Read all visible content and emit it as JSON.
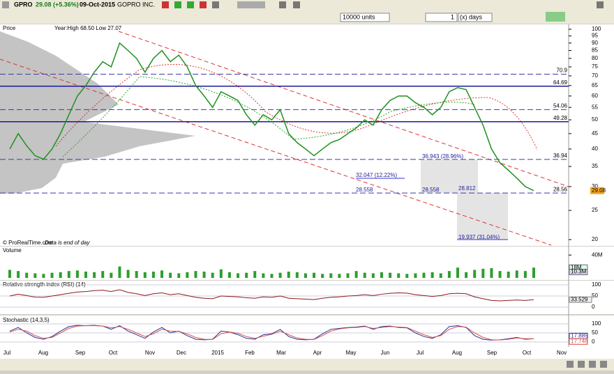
{
  "toolbar": {
    "symbol": "GPRO",
    "quote": "29.08 (+5.36%)",
    "date": "09-Oct-2015",
    "name": "GOPRO INC.",
    "units": "10000 units",
    "period_count": "1",
    "period_unit": "(x) days"
  },
  "price_panel": {
    "title": "Price",
    "info": "Year:High 68.50 Low 27.07",
    "credit": "© ProRealTime.com",
    "note": "Data is end of day",
    "log_scale": true,
    "ylim": [
      20,
      100
    ],
    "yticks": [
      100,
      95,
      90,
      85,
      80,
      75,
      70,
      65,
      60,
      55,
      50,
      45,
      40,
      35,
      30,
      25,
      20
    ],
    "color": "#1f8f1f",
    "values": [
      40,
      45,
      41,
      38,
      37,
      40,
      45,
      52,
      60,
      65,
      72,
      78,
      75,
      90,
      85,
      80,
      72,
      80,
      85,
      78,
      82,
      75,
      65,
      60,
      55,
      62,
      60,
      58,
      52,
      48,
      52,
      50,
      54,
      45,
      42,
      40,
      38,
      40,
      42,
      43,
      45,
      47,
      50,
      48,
      54,
      58,
      60,
      60,
      57,
      55,
      52,
      55,
      62,
      64,
      63,
      55,
      48,
      40,
      36,
      34,
      32,
      30,
      29.08
    ],
    "levels": [
      70.9,
      64.69,
      54.06,
      49.28,
      36.94,
      28.56
    ],
    "level_styles": [
      "dashed",
      "solid",
      "dashed",
      "solid",
      "dashed",
      "dashed"
    ],
    "last": 29.08,
    "annotations": [
      "36.943 (28.96%)",
      "32.047 (12.22%)",
      "28.558",
      "28.558",
      "28.812",
      "19.937 (31.04%)"
    ]
  },
  "volume_panel": {
    "title": "Volume",
    "ylim": [
      0,
      50000000
    ],
    "yticks": [
      {
        "value": 40000000,
        "label": "40M"
      }
    ],
    "markers": [
      {
        "value": 18000000,
        "label": "18M"
      },
      {
        "value": 10300000,
        "label": "10.3M"
      }
    ],
    "color": "#2e9e2e",
    "values": [
      14000000.0,
      12000000.0,
      9000000.0,
      8000000.0,
      7000000.0,
      9000000.0,
      10000000.0,
      12000000.0,
      13000000.0,
      11000000.0,
      10000000.0,
      12000000.0,
      9000000.0,
      20000000.0,
      14000000.0,
      12000000.0,
      10000000.0,
      11000000.0,
      13000000.0,
      9000000.0,
      8000000.0,
      10000000.0,
      12000000.0,
      11000000.0,
      9000000.0,
      15000000.0,
      10000000.0,
      8000000.0,
      9000000.0,
      12000000.0,
      8000000.0,
      7000000.0,
      9000000.0,
      11000000.0,
      10000000.0,
      8000000.0,
      9000000.0,
      7000000.0,
      8000000.0,
      7000000.0,
      8000000.0,
      12000000.0,
      9000000.0,
      8000000.0,
      10000000.0,
      9000000.0,
      8000000.0,
      7000000.0,
      8000000.0,
      9000000.0,
      10000000.0,
      8000000.0,
      12000000.0,
      18000000.0,
      10000000.0,
      14000000.0,
      16000000.0,
      17000000.0,
      12000000.0,
      11000000.0,
      13000000.0,
      12000000.0,
      18000000.0
    ]
  },
  "rsi_panel": {
    "title": "Relative strength index (RSI) (14)",
    "ylim": [
      0,
      100
    ],
    "yticks": [
      100,
      50,
      0
    ],
    "last": 33.529,
    "color": "#8b1a1a",
    "values": [
      50,
      58,
      52,
      45,
      44,
      50,
      56,
      62,
      68,
      70,
      74,
      76,
      70,
      78,
      66,
      60,
      52,
      60,
      64,
      56,
      60,
      52,
      44,
      40,
      38,
      50,
      48,
      46,
      42,
      40,
      46,
      44,
      50,
      40,
      38,
      36,
      34,
      40,
      44,
      46,
      50,
      52,
      56,
      52,
      58,
      62,
      64,
      63,
      56,
      52,
      48,
      52,
      60,
      62,
      60,
      46,
      38,
      30,
      28,
      30,
      32,
      30,
      33.529
    ]
  },
  "stochastic_panel": {
    "title": "Stochastic (14,3,5)",
    "ylim": [
      0,
      100
    ],
    "yticks": [
      100,
      50,
      0
    ],
    "series": [
      {
        "color": "#27318f",
        "last": 17.885,
        "values": [
          60,
          80,
          50,
          25,
          15,
          30,
          60,
          85,
          92,
          90,
          92,
          88,
          70,
          90,
          60,
          40,
          20,
          55,
          80,
          50,
          60,
          35,
          15,
          12,
          15,
          60,
          55,
          40,
          20,
          15,
          40,
          45,
          70,
          30,
          15,
          12,
          15,
          45,
          70,
          75,
          80,
          82,
          88,
          70,
          85,
          88,
          80,
          78,
          50,
          30,
          20,
          40,
          85,
          90,
          80,
          35,
          15,
          10,
          12,
          18,
          25,
          15,
          17.885
        ]
      },
      {
        "color": "#d9534f",
        "last": 17.748,
        "values": [
          55,
          70,
          60,
          35,
          20,
          25,
          50,
          75,
          88,
          90,
          90,
          88,
          78,
          85,
          70,
          50,
          30,
          45,
          70,
          60,
          58,
          45,
          25,
          15,
          14,
          45,
          55,
          48,
          30,
          20,
          32,
          42,
          60,
          40,
          22,
          15,
          14,
          35,
          60,
          72,
          78,
          80,
          85,
          75,
          80,
          85,
          82,
          80,
          60,
          40,
          25,
          35,
          70,
          85,
          82,
          50,
          25,
          12,
          11,
          15,
          22,
          18,
          17.748
        ]
      }
    ]
  },
  "x_axis": {
    "labels": [
      "Jul",
      "Aug",
      "Sep",
      "Oct",
      "Nov",
      "Dec",
      "2015",
      "Feb",
      "Mar",
      "Apr",
      "May",
      "Jun",
      "Jul",
      "Aug",
      "Sep",
      "Oct",
      "Nov"
    ]
  }
}
